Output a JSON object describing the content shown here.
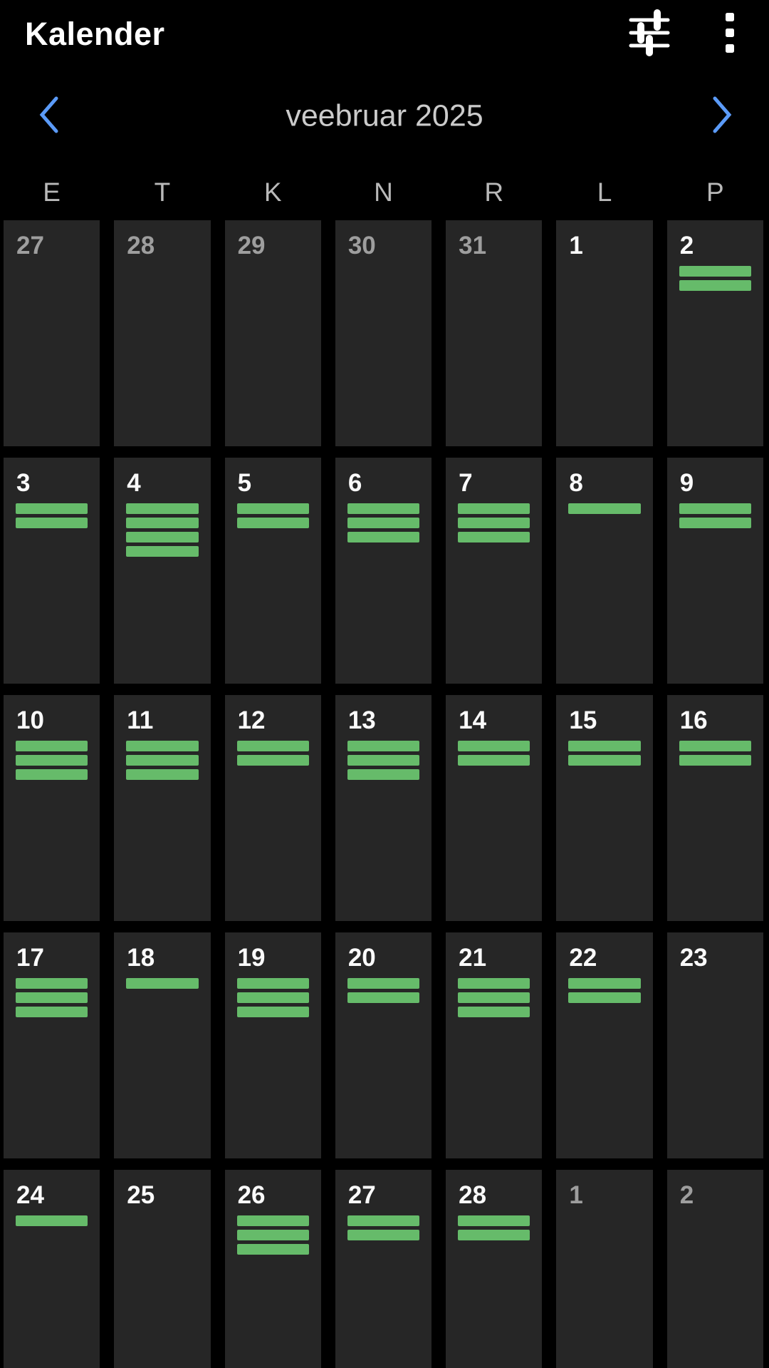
{
  "app": {
    "title": "Kalender"
  },
  "toolbar": {
    "icons": [
      {
        "name": "tune-icon"
      },
      {
        "name": "overflow-menu-icon"
      }
    ]
  },
  "month_nav": {
    "label": "veebruar 2025",
    "prev_icon": "chevron-left-icon",
    "next_icon": "chevron-right-icon"
  },
  "weekday_headers": [
    "E",
    "T",
    "K",
    "N",
    "R",
    "L",
    "P"
  ],
  "weeks": [
    [
      {
        "day": "27",
        "other_month": true,
        "event_bars": 0
      },
      {
        "day": "28",
        "other_month": true,
        "event_bars": 0
      },
      {
        "day": "29",
        "other_month": true,
        "event_bars": 0
      },
      {
        "day": "30",
        "other_month": true,
        "event_bars": 0
      },
      {
        "day": "31",
        "other_month": true,
        "event_bars": 0
      },
      {
        "day": "1",
        "other_month": false,
        "event_bars": 0
      },
      {
        "day": "2",
        "other_month": false,
        "event_bars": 2
      }
    ],
    [
      {
        "day": "3",
        "other_month": false,
        "event_bars": 2
      },
      {
        "day": "4",
        "other_month": false,
        "event_bars": 4
      },
      {
        "day": "5",
        "other_month": false,
        "event_bars": 2
      },
      {
        "day": "6",
        "other_month": false,
        "event_bars": 3
      },
      {
        "day": "7",
        "other_month": false,
        "event_bars": 3
      },
      {
        "day": "8",
        "other_month": false,
        "event_bars": 1
      },
      {
        "day": "9",
        "other_month": false,
        "event_bars": 2
      }
    ],
    [
      {
        "day": "10",
        "other_month": false,
        "event_bars": 3
      },
      {
        "day": "11",
        "other_month": false,
        "event_bars": 3
      },
      {
        "day": "12",
        "other_month": false,
        "event_bars": 2
      },
      {
        "day": "13",
        "other_month": false,
        "event_bars": 3
      },
      {
        "day": "14",
        "other_month": false,
        "event_bars": 2
      },
      {
        "day": "15",
        "other_month": false,
        "event_bars": 2
      },
      {
        "day": "16",
        "other_month": false,
        "event_bars": 2
      }
    ],
    [
      {
        "day": "17",
        "other_month": false,
        "event_bars": 3
      },
      {
        "day": "18",
        "other_month": false,
        "event_bars": 1
      },
      {
        "day": "19",
        "other_month": false,
        "event_bars": 3
      },
      {
        "day": "20",
        "other_month": false,
        "event_bars": 2
      },
      {
        "day": "21",
        "other_month": false,
        "event_bars": 3
      },
      {
        "day": "22",
        "other_month": false,
        "event_bars": 2
      },
      {
        "day": "23",
        "other_month": false,
        "event_bars": 0
      }
    ],
    [
      {
        "day": "24",
        "other_month": false,
        "event_bars": 1
      },
      {
        "day": "25",
        "other_month": false,
        "event_bars": 0
      },
      {
        "day": "26",
        "other_month": false,
        "event_bars": 3
      },
      {
        "day": "27",
        "other_month": false,
        "event_bars": 2
      },
      {
        "day": "28",
        "other_month": false,
        "event_bars": 2
      },
      {
        "day": "1",
        "other_month": true,
        "event_bars": 0
      },
      {
        "day": "2",
        "other_month": true,
        "event_bars": 0
      }
    ]
  ],
  "colors": {
    "background": "#000000",
    "cell_background": "#262626",
    "event_green": "#66bb6a",
    "chevron_blue": "#5b9bf8",
    "day_number_current": "#fafafa",
    "day_number_other": "#9e9e9e",
    "month_label_gray": "#cbcbcb",
    "weekday_gray": "#b9b9b9"
  }
}
